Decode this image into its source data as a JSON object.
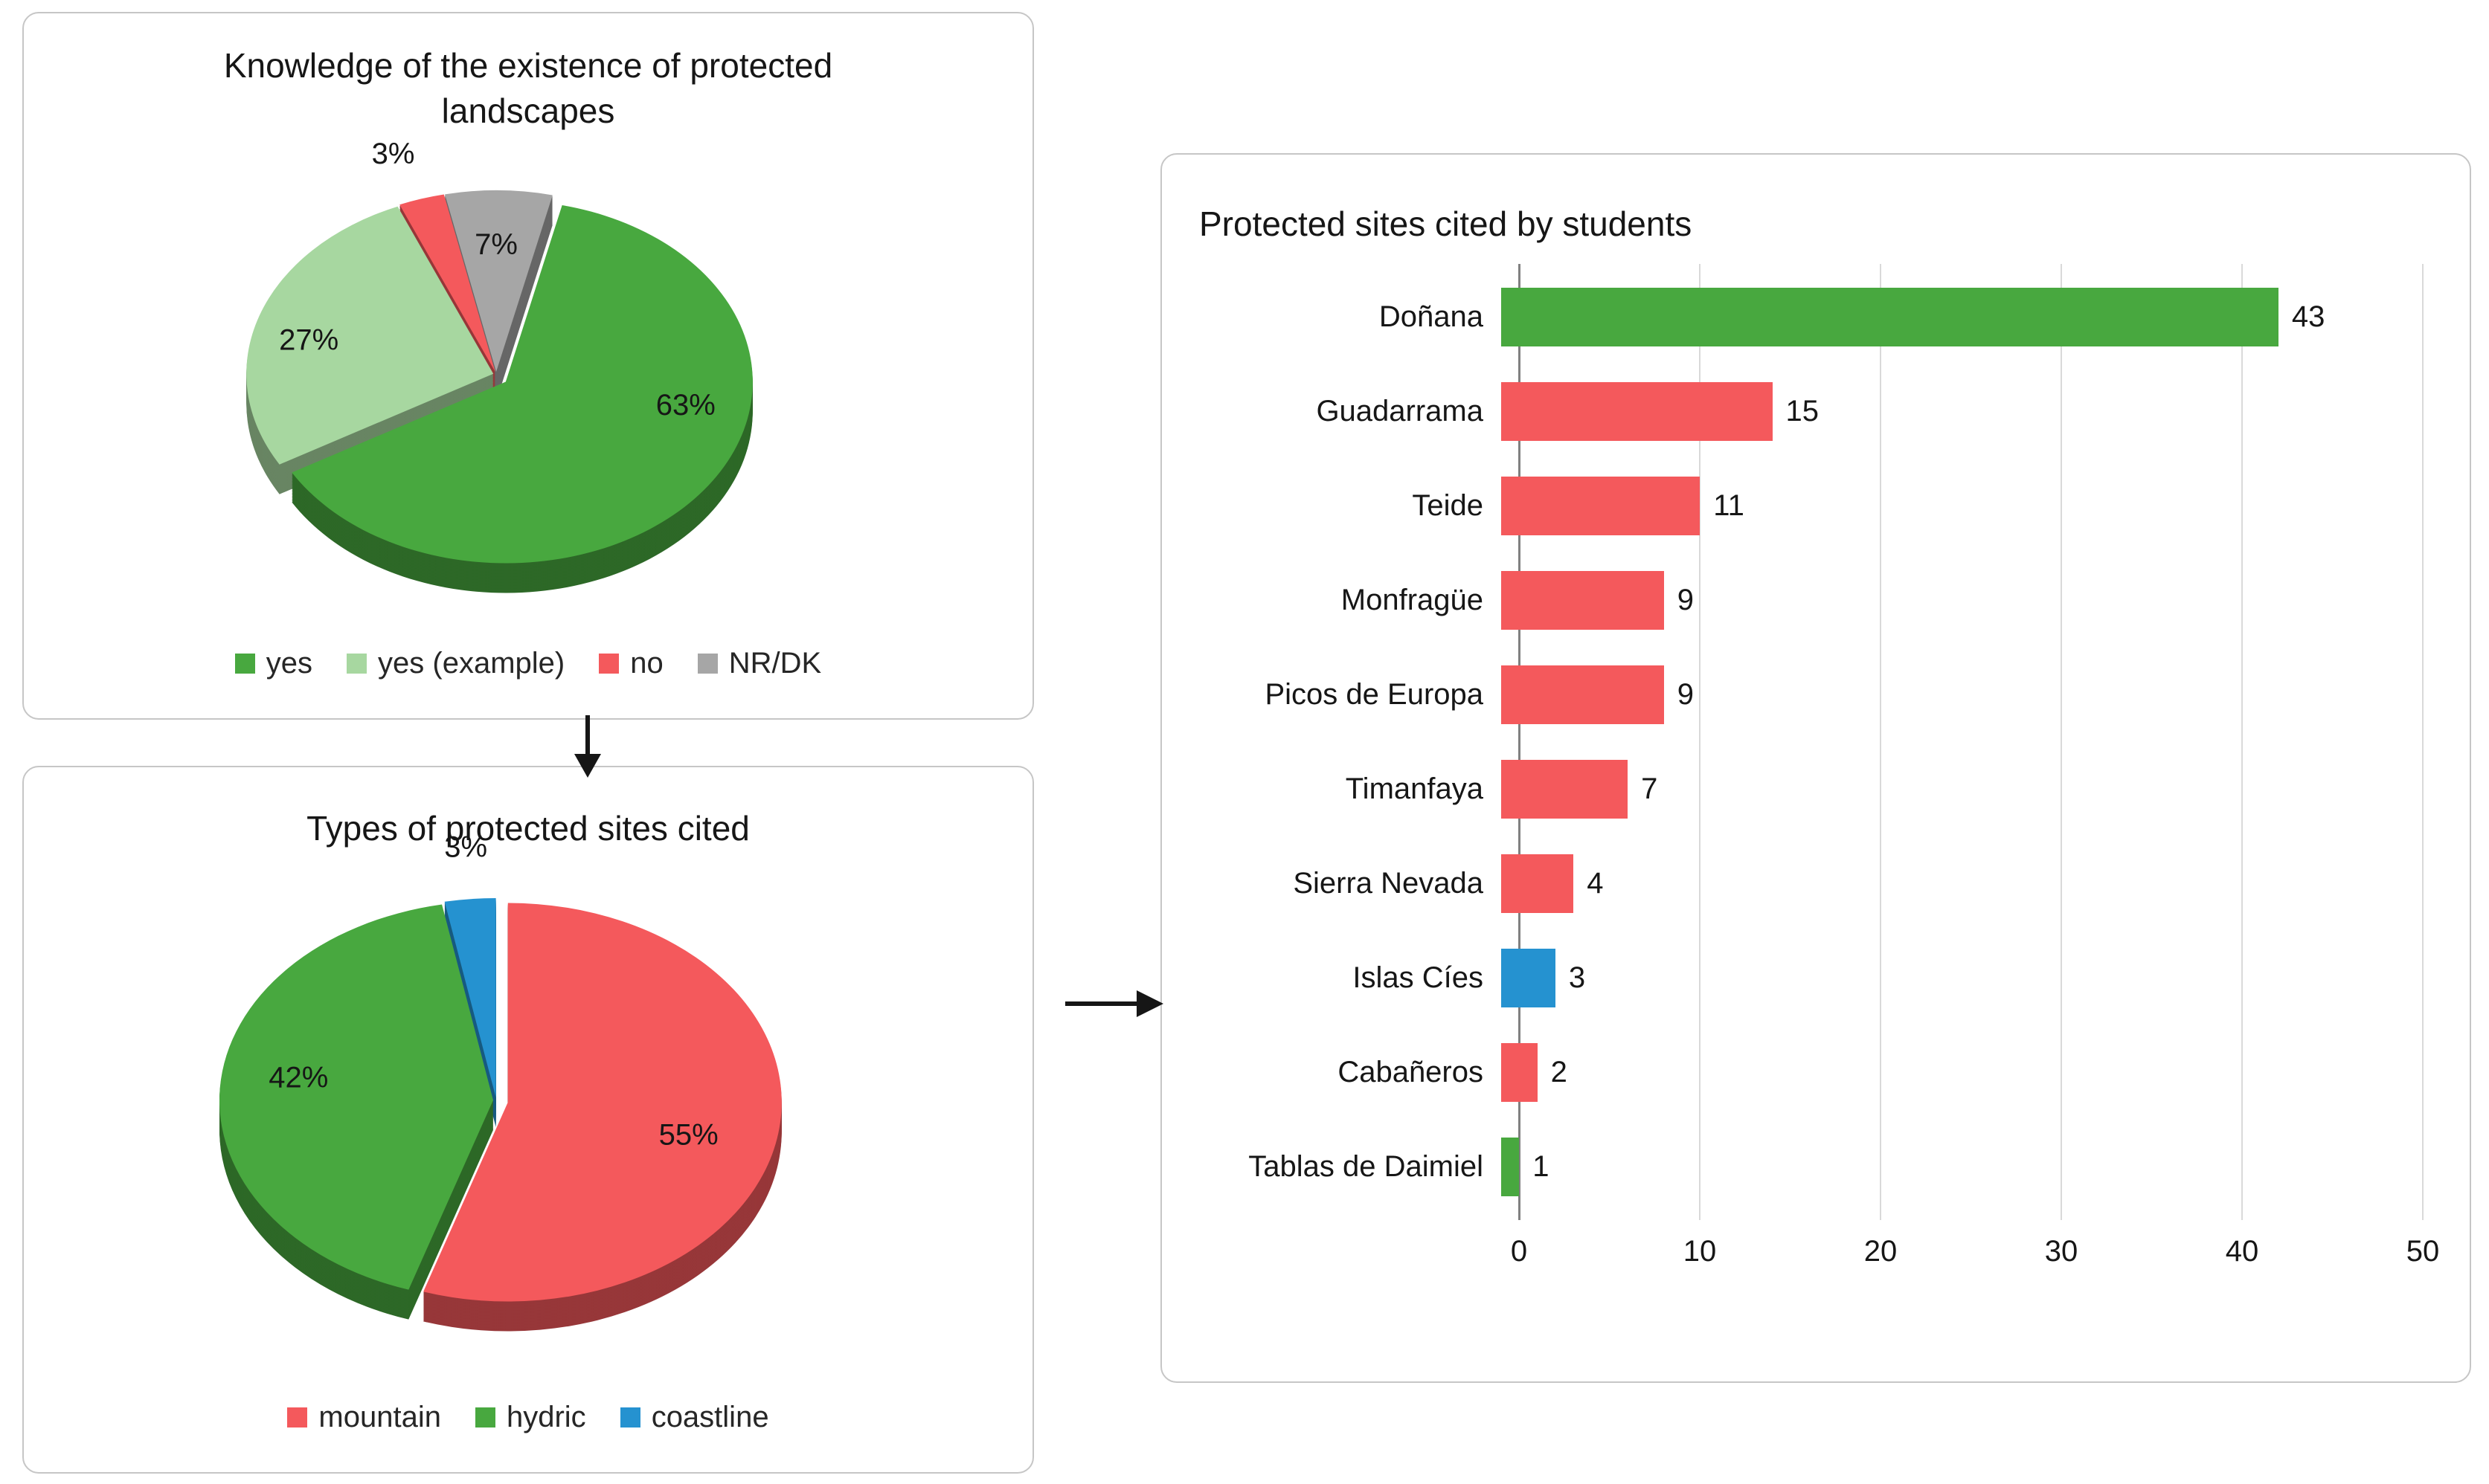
{
  "figure": {
    "background": "#ffffff",
    "panel_border_color": "#c6c6c6",
    "text_color": "#161616"
  },
  "colors": {
    "green": "#48a83f",
    "light_green": "#a7d7a0",
    "red": "#f4595c",
    "gray": "#a6a6a6",
    "blue": "#2592d0",
    "gridline": "#d9d9d9",
    "axis_line": "#808080"
  },
  "chart_data": [
    {
      "id": "knowledge",
      "type": "pie",
      "style": "3d-exploded",
      "title": "Knowledge of the existence of protected landscapes",
      "unit": "%",
      "slices_clockwise_from_top": [
        {
          "label": "NR/DK",
          "value": 7,
          "color": "#a6a6a6"
        },
        {
          "label": "yes",
          "value": 63,
          "color": "#48a83f"
        },
        {
          "label": "yes (example)",
          "value": 27,
          "color": "#a7d7a0"
        },
        {
          "label": "no",
          "value": 3,
          "color": "#f4595c"
        }
      ],
      "data_labels": [
        "7%",
        "63%",
        "27%",
        "3%"
      ],
      "legend_position": "bottom",
      "legend": [
        {
          "label": "yes",
          "color": "#48a83f"
        },
        {
          "label": "yes (example)",
          "color": "#a7d7a0"
        },
        {
          "label": "no",
          "color": "#f4595c"
        },
        {
          "label": "NR/DK",
          "color": "#a6a6a6"
        }
      ]
    },
    {
      "id": "types",
      "type": "pie",
      "style": "3d-exploded",
      "title": "Types of protected sites cited",
      "unit": "%",
      "slices_clockwise_from_top": [
        {
          "label": "mountain",
          "value": 55,
          "color": "#f4595c"
        },
        {
          "label": "hydric",
          "value": 42,
          "color": "#48a83f"
        },
        {
          "label": "coastline",
          "value": 3,
          "color": "#2592d0"
        }
      ],
      "data_labels": [
        "55%",
        "42%",
        "3%"
      ],
      "legend_position": "bottom",
      "legend": [
        {
          "label": "mountain",
          "color": "#f4595c"
        },
        {
          "label": "hydric",
          "color": "#48a83f"
        },
        {
          "label": "coastline",
          "color": "#2592d0"
        }
      ]
    },
    {
      "id": "sites",
      "type": "bar",
      "orientation": "horizontal",
      "title": "Protected sites cited by students",
      "categories": [
        "Doñana",
        "Guadarrama",
        "Teide",
        "Monfragüe",
        "Picos de Europa",
        "Timanfaya",
        "Sierra Nevada",
        "Islas Cíes",
        "Cabañeros",
        "Tablas de Daimiel"
      ],
      "values": [
        43,
        15,
        11,
        9,
        9,
        7,
        4,
        3,
        2,
        1
      ],
      "bar_colors": [
        "#48a83f",
        "#f4595c",
        "#f4595c",
        "#f4595c",
        "#f4595c",
        "#f4595c",
        "#f4595c",
        "#2592d0",
        "#f4595c",
        "#48a83f"
      ],
      "value_labels_shown": true,
      "xlim": [
        0,
        50
      ],
      "xticks": [
        0,
        10,
        20,
        30,
        40,
        50
      ],
      "grid": true,
      "legend": null
    }
  ]
}
